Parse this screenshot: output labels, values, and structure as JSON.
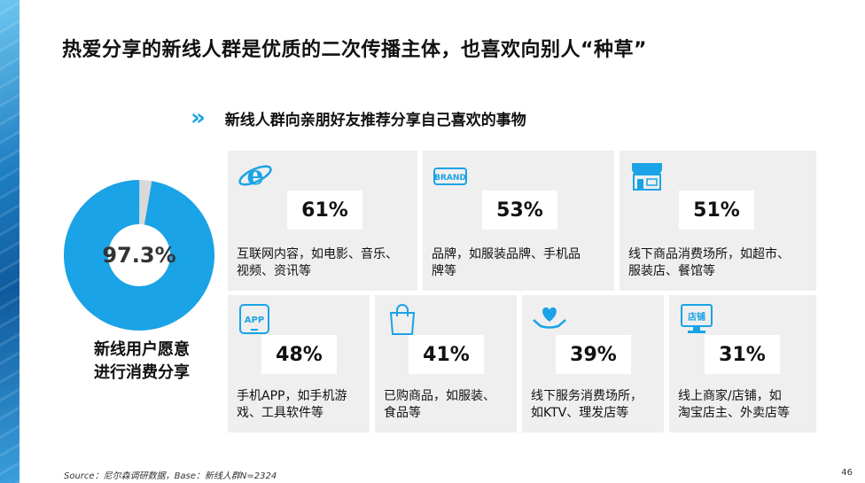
{
  "title": "热爱分享的新线人群是优质的二次传播主体，也喜欢向别人“种草”",
  "subtitle": "新线人群向亲朋好友推荐分享自己喜欢的事物",
  "chevrons": "»",
  "donut": {
    "value_label": "97.3%",
    "value": 97.3,
    "caption_line1": "新线用户愿意",
    "caption_line2": "进行消费分享",
    "fill_color": "#1aa3e6",
    "rest_color": "#d9d9d9"
  },
  "cards_top": [
    {
      "icon": "internet-explorer-icon",
      "pct": "61%",
      "desc_line1": "互联网内容，如电影、音乐、",
      "desc_line2": "视频、资讯等"
    },
    {
      "icon": "brand-icon",
      "pct": "53%",
      "desc_line1": "品牌，如服装品牌、手机品",
      "desc_line2": "牌等",
      "brand_text": "BRAND"
    },
    {
      "icon": "store-icon",
      "pct": "51%",
      "desc_line1": "线下商品消费场所，如超市、",
      "desc_line2": "服装店、餐馆等"
    }
  ],
  "cards_bottom": [
    {
      "icon": "app-phone-icon",
      "pct": "48%",
      "desc_line1": "手机APP，如手机游",
      "desc_line2": "戏、工具软件等",
      "app_text": "APP"
    },
    {
      "icon": "shopping-bag-icon",
      "pct": "41%",
      "desc_line1": "已购商品，如服装、",
      "desc_line2": "食品等"
    },
    {
      "icon": "heart-hands-icon",
      "pct": "39%",
      "desc_line1": "线下服务消费场所，",
      "desc_line2": "如KTV、理发店等"
    },
    {
      "icon": "online-store-icon",
      "pct": "31%",
      "desc_line1": "线上商家/店铺，如",
      "desc_line2": "淘宝店主、外卖店等",
      "store_text": "店铺"
    }
  ],
  "source": "Source：尼尔森调研数据，Base：新线人群N=2324",
  "page_number": "46"
}
